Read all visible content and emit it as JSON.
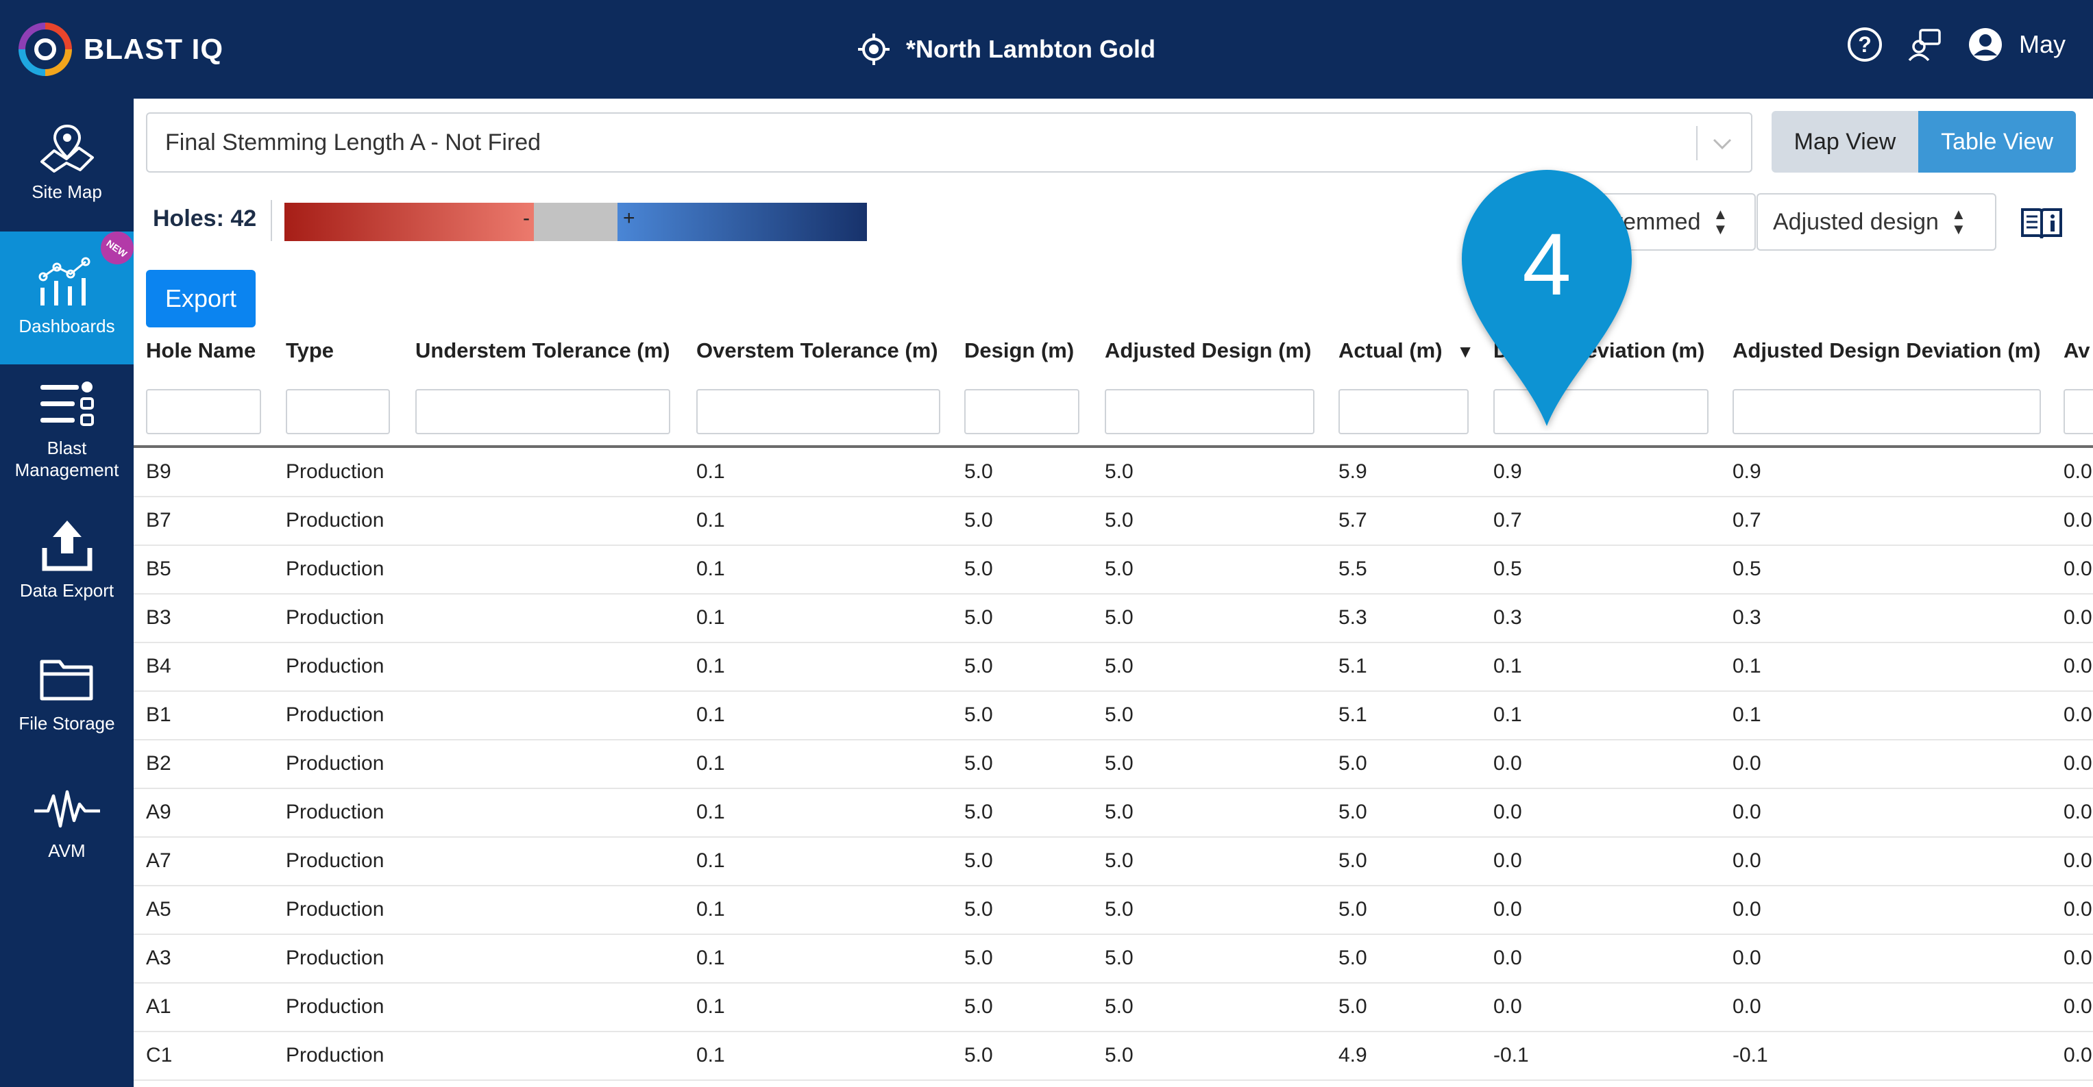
{
  "header": {
    "logo_text": "BLAST IQ",
    "site_title": "*North Lambton Gold",
    "user_name": "May"
  },
  "sidebar": {
    "items": [
      {
        "label": "Site Map",
        "icon": "map-icon"
      },
      {
        "label": "Dashboards",
        "icon": "dashboard-chart-icon",
        "badge": "NEW"
      },
      {
        "label": "Blast Management",
        "icon": "list-settings-icon"
      },
      {
        "label": "Data Export",
        "icon": "upload-icon"
      },
      {
        "label": "File Storage",
        "icon": "folder-icon"
      },
      {
        "label": "AVM",
        "icon": "waveform-icon"
      }
    ]
  },
  "toolbar": {
    "layer_select": "Final Stemming Length A - Not Fired",
    "map_view": "Map View",
    "table_view": "Table View",
    "holes_label": "Holes: 42",
    "legend_minus": "-",
    "legend_plus": "+",
    "filter_stemmed": "Stemmed",
    "filter_design": "Adjusted design",
    "export_label": "Export"
  },
  "annotation": {
    "step_number": "4"
  },
  "colors": {
    "header_bg": "#0d2b5c",
    "active_nav": "#0d8fd6",
    "export_button": "#0b84f0",
    "table_view_active": "#3c97d6",
    "pin": "#0a93d3"
  },
  "table": {
    "columns": [
      "Hole Name",
      "Type",
      "Understem Tolerance (m)",
      "Overstem Tolerance (m)",
      "Design (m)",
      "Adjusted Design (m)",
      "Actual (m)",
      "Design Deviation (m)",
      "Adjusted Design Deviation (m)",
      "Av"
    ],
    "sort_indicator": "▼",
    "rows": [
      {
        "name": "B9",
        "type": "Production",
        "under": "",
        "over": "0.1",
        "design": "5.0",
        "adj": "5.0",
        "actual": "5.9",
        "dev": "0.9",
        "adjdev": "0.9",
        "av": "0.0"
      },
      {
        "name": "B7",
        "type": "Production",
        "under": "",
        "over": "0.1",
        "design": "5.0",
        "adj": "5.0",
        "actual": "5.7",
        "dev": "0.7",
        "adjdev": "0.7",
        "av": "0.0"
      },
      {
        "name": "B5",
        "type": "Production",
        "under": "",
        "over": "0.1",
        "design": "5.0",
        "adj": "5.0",
        "actual": "5.5",
        "dev": "0.5",
        "adjdev": "0.5",
        "av": "0.0"
      },
      {
        "name": "B3",
        "type": "Production",
        "under": "",
        "over": "0.1",
        "design": "5.0",
        "adj": "5.0",
        "actual": "5.3",
        "dev": "0.3",
        "adjdev": "0.3",
        "av": "0.0"
      },
      {
        "name": "B4",
        "type": "Production",
        "under": "",
        "over": "0.1",
        "design": "5.0",
        "adj": "5.0",
        "actual": "5.1",
        "dev": "0.1",
        "adjdev": "0.1",
        "av": "0.0"
      },
      {
        "name": "B1",
        "type": "Production",
        "under": "",
        "over": "0.1",
        "design": "5.0",
        "adj": "5.0",
        "actual": "5.1",
        "dev": "0.1",
        "adjdev": "0.1",
        "av": "0.0"
      },
      {
        "name": "B2",
        "type": "Production",
        "under": "",
        "over": "0.1",
        "design": "5.0",
        "adj": "5.0",
        "actual": "5.0",
        "dev": "0.0",
        "adjdev": "0.0",
        "av": "0.0"
      },
      {
        "name": "A9",
        "type": "Production",
        "under": "",
        "over": "0.1",
        "design": "5.0",
        "adj": "5.0",
        "actual": "5.0",
        "dev": "0.0",
        "adjdev": "0.0",
        "av": "0.0"
      },
      {
        "name": "A7",
        "type": "Production",
        "under": "",
        "over": "0.1",
        "design": "5.0",
        "adj": "5.0",
        "actual": "5.0",
        "dev": "0.0",
        "adjdev": "0.0",
        "av": "0.0"
      },
      {
        "name": "A5",
        "type": "Production",
        "under": "",
        "over": "0.1",
        "design": "5.0",
        "adj": "5.0",
        "actual": "5.0",
        "dev": "0.0",
        "adjdev": "0.0",
        "av": "0.0"
      },
      {
        "name": "A3",
        "type": "Production",
        "under": "",
        "over": "0.1",
        "design": "5.0",
        "adj": "5.0",
        "actual": "5.0",
        "dev": "0.0",
        "adjdev": "0.0",
        "av": "0.0"
      },
      {
        "name": "A1",
        "type": "Production",
        "under": "",
        "over": "0.1",
        "design": "5.0",
        "adj": "5.0",
        "actual": "5.0",
        "dev": "0.0",
        "adjdev": "0.0",
        "av": "0.0"
      },
      {
        "name": "C1",
        "type": "Production",
        "under": "",
        "over": "0.1",
        "design": "5.0",
        "adj": "5.0",
        "actual": "4.9",
        "dev": "-0.1",
        "adjdev": "-0.1",
        "av": "0.0"
      }
    ]
  }
}
